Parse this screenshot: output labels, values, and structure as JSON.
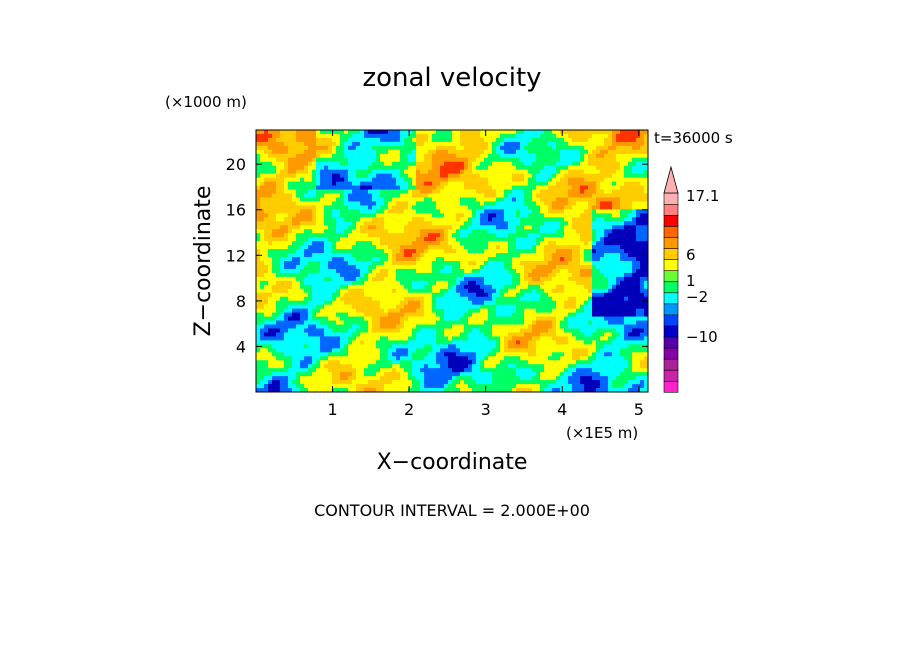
{
  "chart_data": {
    "type": "heatmap",
    "title": "zonal velocity",
    "xlabel": "X−coordinate",
    "ylabel": "Z−coordinate",
    "x_scale_label": "(×1E5 m)",
    "y_scale_label": "(×1000 m)",
    "time_label": "t=36000 s",
    "footer": "CONTOUR INTERVAL = 2.000E+00",
    "xlim": [
      0,
      5.12
    ],
    "ylim": [
      0,
      23
    ],
    "x_ticks": [
      1,
      2,
      3,
      4,
      5
    ],
    "y_ticks": [
      4,
      8,
      12,
      16,
      20
    ],
    "colorbar": {
      "tick_labels": [
        "17.1",
        "6",
        "1",
        "−2",
        "−10"
      ],
      "levels": [
        {
          "color": "#ff22cc"
        },
        {
          "color": "#cc22aa"
        },
        {
          "color": "#aa2299"
        },
        {
          "color": "#8800aa"
        },
        {
          "color": "#5500aa"
        },
        {
          "color": "#0000cc"
        },
        {
          "color": "#0044ff"
        },
        {
          "color": "#0099ff"
        },
        {
          "color": "#00ffff"
        },
        {
          "color": "#00ff66"
        },
        {
          "color": "#66ff33"
        },
        {
          "color": "#ffff00"
        },
        {
          "color": "#ffcc00"
        },
        {
          "color": "#ff9900"
        },
        {
          "color": "#ff6600"
        },
        {
          "color": "#ff0000"
        },
        {
          "color": "#ff8080"
        },
        {
          "color": "#ffb0b0"
        }
      ]
    },
    "field_palette": [
      "#0000bb",
      "#0066ff",
      "#00ffff",
      "#00ff66",
      "#ffff00",
      "#ffcc00",
      "#ff9900",
      "#ff3300"
    ]
  }
}
